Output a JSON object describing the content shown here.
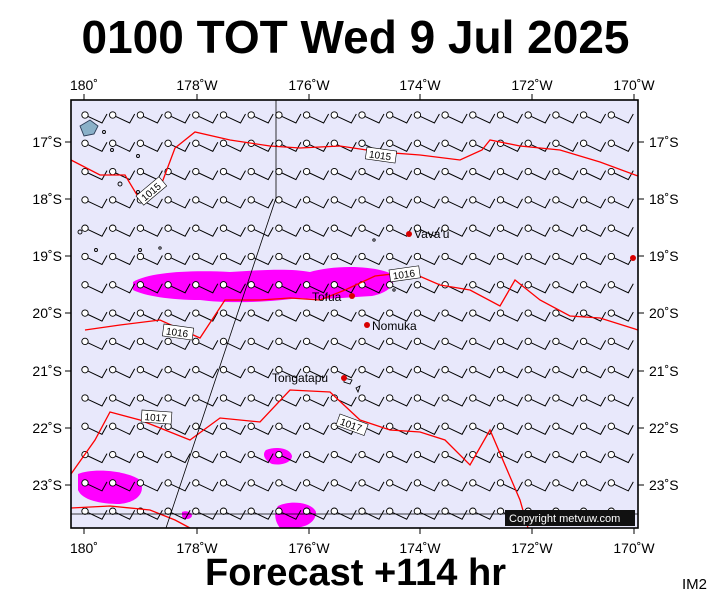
{
  "title": "0100 TOT Wed 9 Jul 2025",
  "subtitle": "Forecast +114 hr",
  "image_code": "IM2",
  "copyright": "Copyright metvuw.com",
  "longitude_ticks": [
    "180˚",
    "178˚W",
    "176˚W",
    "174˚W",
    "172˚W",
    "170˚W"
  ],
  "latitude_ticks": [
    "17˚S",
    "18˚S",
    "19˚S",
    "20˚S",
    "21˚S",
    "22˚S",
    "23˚S"
  ],
  "places": [
    {
      "name": "Vava'u"
    },
    {
      "name": "Tofua"
    },
    {
      "name": "Nomuka"
    },
    {
      "name": "Tongatapu"
    }
  ],
  "isobar_labels": [
    "1015",
    "1015",
    "1016",
    "1016",
    "1017",
    "1017"
  ],
  "colors": {
    "ocean": "#e8e8fb",
    "isobar": "#ff0000",
    "rain": "#ff00ff",
    "place_marker": "#d80000"
  },
  "wind_barb_symbol": "circle-station with barb"
}
